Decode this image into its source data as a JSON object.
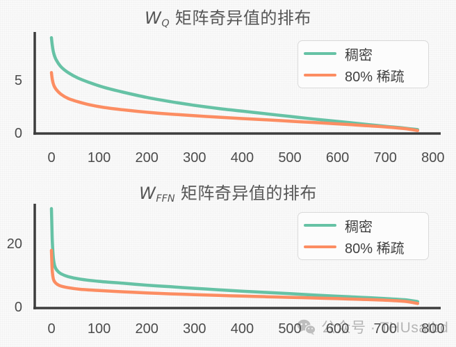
{
  "style": {
    "dense_color": "#66c2a5",
    "sparse_color": "#fc8d62",
    "axis_color": "#3d3d3d",
    "tick_label_color": "#4b4b4b",
    "title_color": "#565656",
    "legend_border_color": "#d9d9d9",
    "background": "#fafafa",
    "watermark_color": "#a6a6a6"
  },
  "watermark": {
    "icon": "wechat-icon",
    "text": "公众号 · THUsatbd"
  },
  "chart_data": [
    {
      "type": "line",
      "title": {
        "var": "W",
        "subscript": "Q",
        "suffix": " 矩阵奇异值的排布"
      },
      "xlabel": "",
      "ylabel": "",
      "xlim": [
        -15,
        840
      ],
      "ylim": [
        0,
        9.6
      ],
      "x_ticks": [
        0,
        100,
        200,
        300,
        400,
        500,
        600,
        700,
        800
      ],
      "y_ticks": [
        0,
        5
      ],
      "grid": false,
      "legend_position": "upper right",
      "series": [
        {
          "name": "稠密",
          "color": "#66c2a5",
          "points": [
            [
              0,
              9.0
            ],
            [
              2,
              8.2
            ],
            [
              5,
              7.5
            ],
            [
              10,
              6.9
            ],
            [
              20,
              6.25
            ],
            [
              35,
              5.7
            ],
            [
              55,
              5.2
            ],
            [
              80,
              4.75
            ],
            [
              110,
              4.3
            ],
            [
              150,
              3.85
            ],
            [
              200,
              3.35
            ],
            [
              250,
              2.95
            ],
            [
              300,
              2.6
            ],
            [
              350,
              2.3
            ],
            [
              400,
              2.05
            ],
            [
              450,
              1.8
            ],
            [
              500,
              1.55
            ],
            [
              550,
              1.3
            ],
            [
              600,
              1.08
            ],
            [
              650,
              0.85
            ],
            [
              700,
              0.62
            ],
            [
              740,
              0.45
            ],
            [
              768,
              0.3
            ]
          ]
        },
        {
          "name": "80% 稀疏",
          "color": "#fc8d62",
          "points": [
            [
              0,
              5.7
            ],
            [
              2,
              5.0
            ],
            [
              5,
              4.5
            ],
            [
              10,
              4.1
            ],
            [
              20,
              3.65
            ],
            [
              35,
              3.25
            ],
            [
              55,
              2.95
            ],
            [
              80,
              2.65
            ],
            [
              110,
              2.4
            ],
            [
              150,
              2.18
            ],
            [
              200,
              1.95
            ],
            [
              250,
              1.77
            ],
            [
              300,
              1.62
            ],
            [
              350,
              1.48
            ],
            [
              400,
              1.35
            ],
            [
              450,
              1.23
            ],
            [
              500,
              1.1
            ],
            [
              550,
              0.98
            ],
            [
              600,
              0.85
            ],
            [
              650,
              0.71
            ],
            [
              700,
              0.56
            ],
            [
              740,
              0.4
            ],
            [
              768,
              0.22
            ]
          ]
        }
      ]
    },
    {
      "type": "line",
      "title": {
        "var": "W",
        "subscript": "FFN",
        "suffix": " 矩阵奇异值的排布"
      },
      "xlabel": "",
      "ylabel": "",
      "xlim": [
        -15,
        840
      ],
      "ylim": [
        0,
        31.5
      ],
      "x_ticks": [
        0,
        100,
        200,
        300,
        400,
        500,
        600,
        700,
        800
      ],
      "y_ticks": [
        0,
        20
      ],
      "grid": false,
      "legend_position": "upper right",
      "series": [
        {
          "name": "稠密",
          "color": "#66c2a5",
          "points": [
            [
              0,
              31
            ],
            [
              1,
              25
            ],
            [
              2,
              20
            ],
            [
              4,
              15.5
            ],
            [
              7,
              12.8
            ],
            [
              12,
              11.4
            ],
            [
              20,
              10.4
            ],
            [
              35,
              9.5
            ],
            [
              60,
              8.7
            ],
            [
              100,
              8.0
            ],
            [
              150,
              7.4
            ],
            [
              200,
              6.8
            ],
            [
              250,
              6.3
            ],
            [
              300,
              5.8
            ],
            [
              350,
              5.35
            ],
            [
              400,
              4.9
            ],
            [
              450,
              4.5
            ],
            [
              500,
              4.1
            ],
            [
              550,
              3.7
            ],
            [
              600,
              3.3
            ],
            [
              650,
              2.95
            ],
            [
              700,
              2.55
            ],
            [
              740,
              2.2
            ],
            [
              768,
              1.6
            ]
          ]
        },
        {
          "name": "80% 稀疏",
          "color": "#fc8d62",
          "points": [
            [
              0,
              17.8
            ],
            [
              1,
              13.5
            ],
            [
              2,
              10.8
            ],
            [
              4,
              8.8
            ],
            [
              7,
              7.8
            ],
            [
              12,
              7.1
            ],
            [
              20,
              6.5
            ],
            [
              35,
              6.0
            ],
            [
              60,
              5.5
            ],
            [
              100,
              5.1
            ],
            [
              150,
              4.7
            ],
            [
              200,
              4.35
            ],
            [
              250,
              4.05
            ],
            [
              300,
              3.8
            ],
            [
              350,
              3.55
            ],
            [
              400,
              3.35
            ],
            [
              450,
              3.15
            ],
            [
              500,
              2.95
            ],
            [
              550,
              2.75
            ],
            [
              600,
              2.55
            ],
            [
              650,
              2.3
            ],
            [
              700,
              2.05
            ],
            [
              740,
              1.7
            ],
            [
              768,
              1.0
            ]
          ]
        }
      ]
    }
  ]
}
